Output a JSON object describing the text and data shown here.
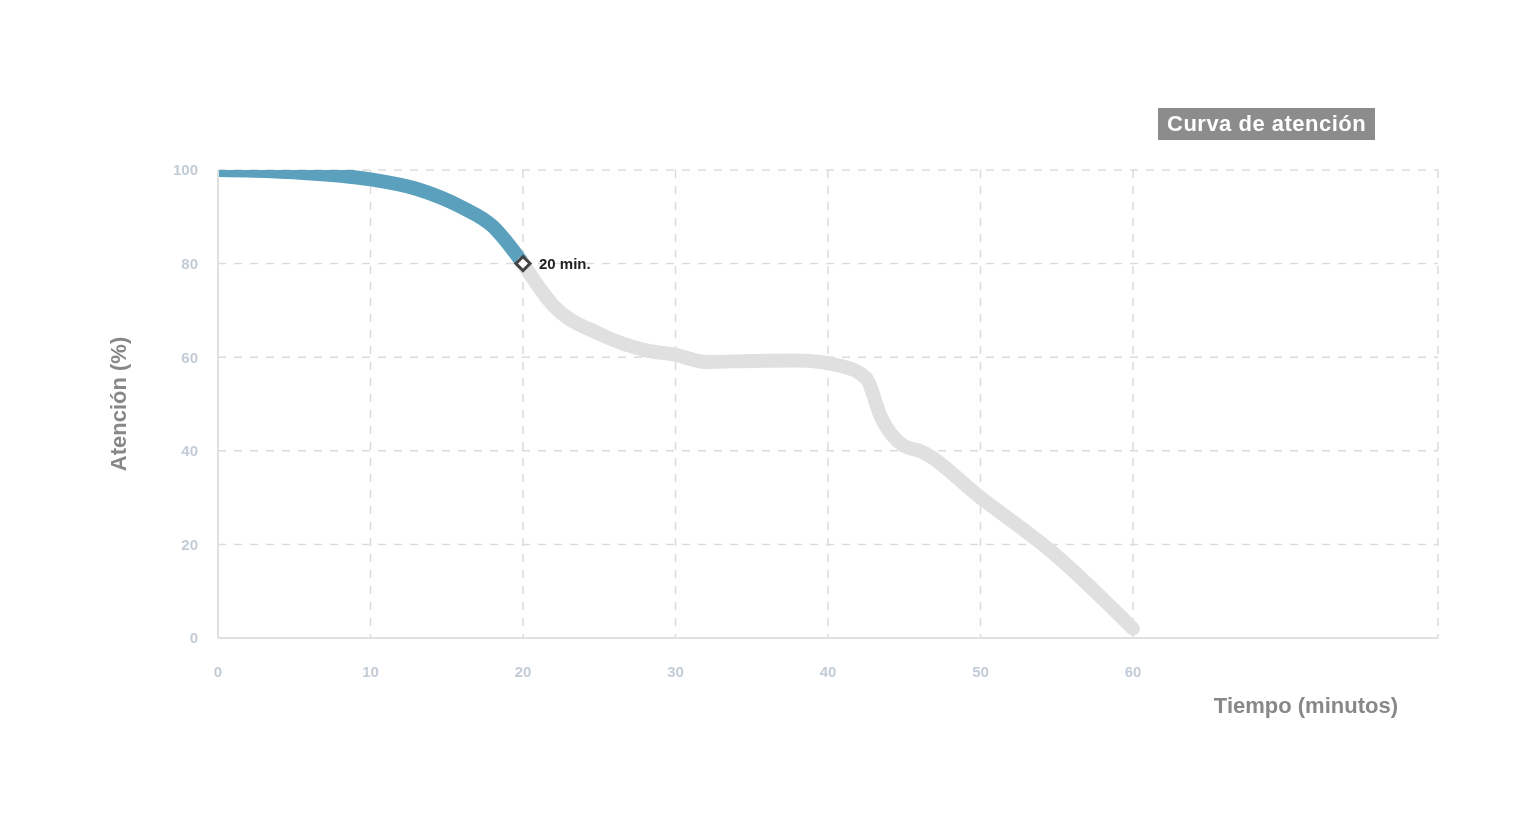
{
  "chart_data": {
    "type": "line",
    "title": "Curva de atención",
    "xlabel": "Tiempo (minutos)",
    "ylabel": "Atención (%)",
    "xlim": [
      0,
      80
    ],
    "xticks": [
      0,
      10,
      20,
      30,
      40,
      50,
      60
    ],
    "ylim": [
      0,
      100
    ],
    "yticks": [
      0,
      20,
      40,
      60,
      80,
      100
    ],
    "grid": true,
    "marker": "none",
    "line_style": "solid",
    "annotations": [
      {
        "text": "20 min.",
        "x": 20,
        "y": 80
      }
    ],
    "series": [
      {
        "color": "#5ba0bd",
        "x": [
          0,
          5,
          10,
          13,
          16,
          18,
          20
        ],
        "values": [
          100,
          99.5,
          98,
          96,
          92,
          88,
          80
        ]
      },
      {
        "color": "#e0e0e0",
        "x": [
          20,
          22,
          25,
          28,
          30,
          32,
          35,
          38,
          41,
          42.5,
          43.5,
          45,
          46,
          50,
          55,
          60
        ],
        "values": [
          80,
          71,
          65,
          61.5,
          60.5,
          59,
          59.2,
          59.3,
          58,
          55.5,
          47,
          41,
          40,
          30,
          17.5,
          2
        ]
      }
    ]
  }
}
